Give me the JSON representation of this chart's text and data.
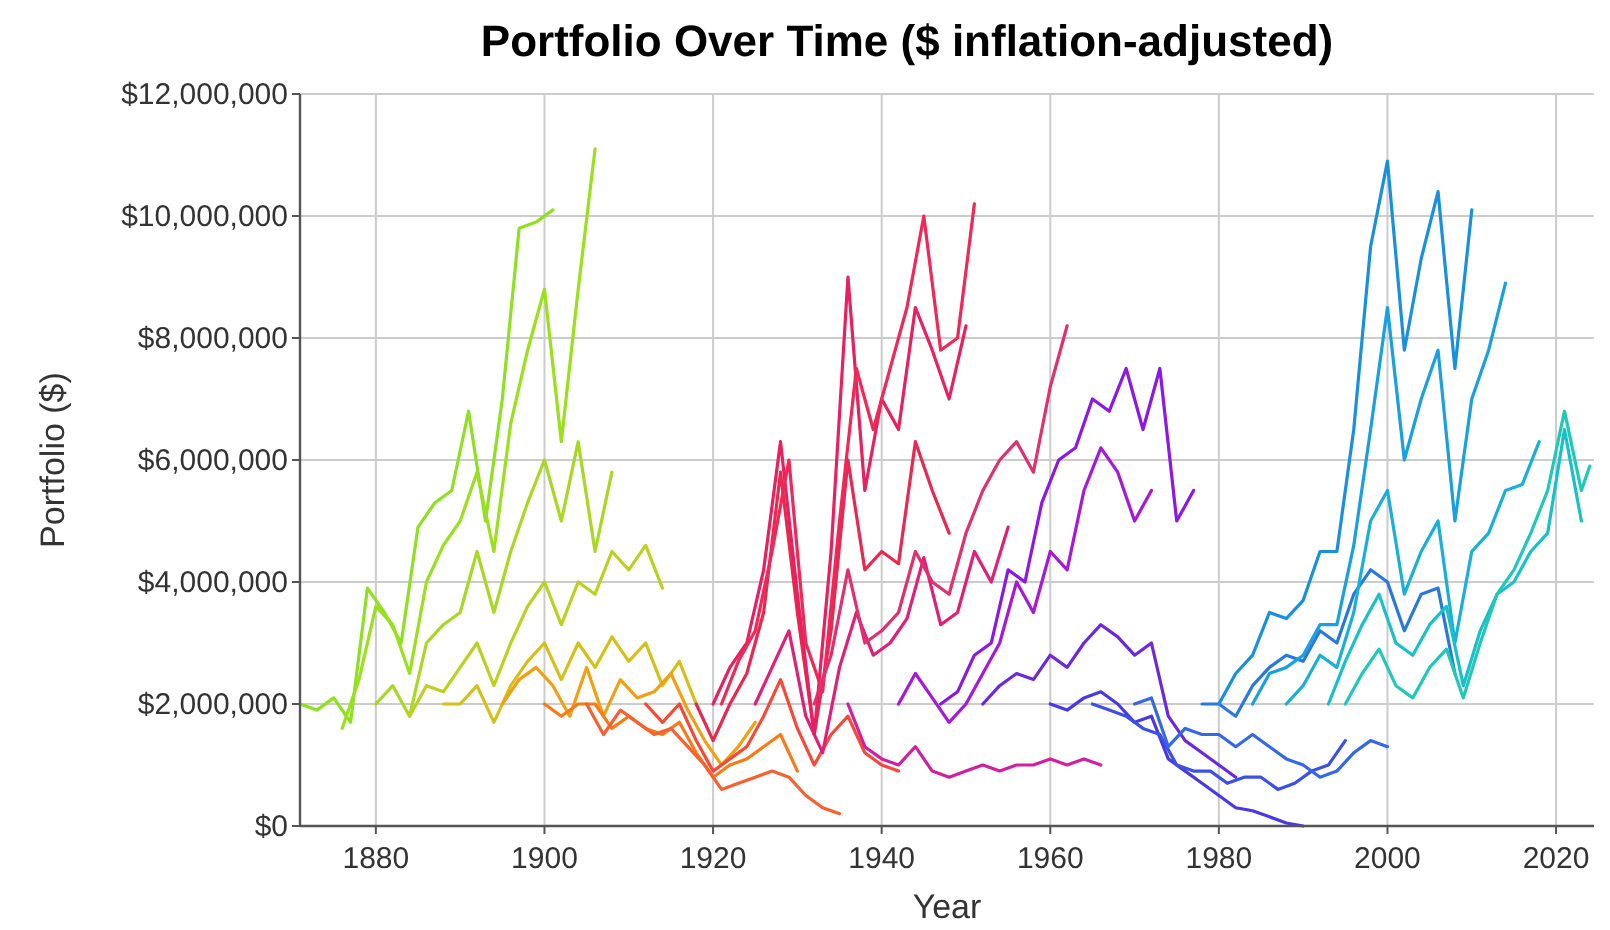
{
  "chart_data": {
    "type": "line",
    "title": "Portfolio Over Time ($ inflation-adjusted)",
    "xlabel": "Year",
    "ylabel": "Portfolio ($)",
    "xlim": [
      1871,
      2024.5
    ],
    "xticks": [
      1880,
      1900,
      1920,
      1940,
      1960,
      1980,
      2000,
      2020
    ],
    "ylim": [
      0,
      12000000
    ],
    "yticks": [
      {
        "value": 0,
        "label": "$0"
      },
      {
        "value": 2000000,
        "label": "$2,000,000"
      },
      {
        "value": 4000000,
        "label": "$4,000,000"
      },
      {
        "value": 6000000,
        "label": "$6,000,000"
      },
      {
        "value": 8000000,
        "label": "$8,000,000"
      },
      {
        "value": 10000000,
        "label": "$10,000,000"
      },
      {
        "value": 12000000,
        "label": "$12,000,000"
      }
    ],
    "grid": true,
    "marker": "none",
    "line_style": "solid",
    "series": [
      {
        "color": "#8ee020",
        "x": [
          1871,
          1873,
          1875,
          1877,
          1879,
          1881,
          1883,
          1885,
          1887,
          1889,
          1891,
          1893,
          1895,
          1897,
          1899,
          1901
        ],
        "values": [
          2000000,
          1900000,
          2100000,
          1700000,
          3900000,
          3500000,
          3000000,
          4900000,
          5300000,
          5500000,
          6800000,
          5000000,
          7000000,
          9800000,
          9900000,
          10100000
        ]
      },
      {
        "color": "#9ae01c",
        "x": [
          1876,
          1878,
          1880,
          1882,
          1884,
          1886,
          1888,
          1890,
          1892,
          1894,
          1896,
          1898,
          1900,
          1902,
          1904,
          1906
        ],
        "values": [
          1600000,
          2400000,
          3600000,
          3300000,
          2500000,
          4000000,
          4600000,
          5000000,
          5800000,
          4500000,
          6600000,
          7800000,
          8800000,
          6300000,
          8800000,
          11100000
        ]
      },
      {
        "color": "#a8d824",
        "x": [
          1880,
          1882,
          1884,
          1886,
          1888,
          1890,
          1892,
          1894,
          1896,
          1898,
          1900,
          1902,
          1904,
          1906,
          1908
        ],
        "values": [
          2000000,
          2300000,
          1800000,
          3000000,
          3300000,
          3500000,
          4500000,
          3500000,
          4500000,
          5300000,
          6000000,
          5000000,
          6300000,
          4500000,
          5800000
        ]
      },
      {
        "color": "#bcd020",
        "x": [
          1884,
          1886,
          1888,
          1890,
          1892,
          1894,
          1896,
          1898,
          1900,
          1902,
          1904,
          1906,
          1908,
          1910,
          1912,
          1914
        ],
        "values": [
          1800000,
          2300000,
          2200000,
          2600000,
          3000000,
          2300000,
          3000000,
          3600000,
          4000000,
          3300000,
          4000000,
          3800000,
          4500000,
          4200000,
          4600000,
          3900000
        ]
      },
      {
        "color": "#d4c018",
        "x": [
          1888,
          1890,
          1892,
          1894,
          1896,
          1898,
          1900,
          1902,
          1904,
          1906,
          1908,
          1910,
          1912,
          1914,
          1916,
          1918
        ],
        "values": [
          2000000,
          2000000,
          2300000,
          1700000,
          2300000,
          2700000,
          3000000,
          2400000,
          3000000,
          2600000,
          3100000,
          2700000,
          3000000,
          2300000,
          2700000,
          2000000
        ]
      },
      {
        "color": "#f0a010",
        "x": [
          1895,
          1897,
          1899,
          1901,
          1903,
          1905,
          1907,
          1909,
          1911,
          1913,
          1915,
          1917,
          1919,
          1921,
          1923,
          1925
        ],
        "values": [
          2000000,
          2400000,
          2600000,
          2300000,
          1800000,
          2600000,
          1800000,
          2400000,
          2100000,
          2200000,
          2500000,
          1900000,
          1400000,
          1000000,
          1300000,
          1700000
        ]
      },
      {
        "color": "#f87a18",
        "x": [
          1900,
          1902,
          1904,
          1906,
          1908,
          1910,
          1912,
          1914,
          1916,
          1918,
          1920,
          1922,
          1924,
          1926,
          1928,
          1930
        ],
        "values": [
          2000000,
          1800000,
          2000000,
          2000000,
          1600000,
          1800000,
          1600000,
          1500000,
          1700000,
          1200000,
          800000,
          1000000,
          1100000,
          1300000,
          1500000,
          900000
        ]
      },
      {
        "color": "#f86030",
        "x": [
          1905,
          1907,
          1909,
          1911,
          1913,
          1915,
          1917,
          1919,
          1921,
          1923,
          1925,
          1927,
          1929,
          1931,
          1933,
          1935
        ],
        "values": [
          2000000,
          1500000,
          1900000,
          1700000,
          1500000,
          1600000,
          1300000,
          1000000,
          600000,
          700000,
          800000,
          900000,
          800000,
          500000,
          300000,
          200000
        ]
      },
      {
        "color": "#f84838",
        "x": [
          1912,
          1914,
          1916,
          1918,
          1920,
          1922,
          1924,
          1926,
          1928,
          1930,
          1932,
          1934,
          1936,
          1938,
          1940,
          1942
        ],
        "values": [
          2000000,
          1700000,
          2000000,
          1400000,
          900000,
          1100000,
          1300000,
          1800000,
          2400000,
          1600000,
          1000000,
          1500000,
          1800000,
          1200000,
          1000000,
          900000
        ]
      },
      {
        "color": "#e82850",
        "x": [
          1918,
          1920,
          1922,
          1924,
          1926,
          1928,
          1930,
          1932,
          1934,
          1936,
          1938,
          1940,
          1942,
          1944,
          1946,
          1948
        ],
        "values": [
          2000000,
          1400000,
          2000000,
          2500000,
          3500000,
          5800000,
          3500000,
          1500000,
          3200000,
          6000000,
          4200000,
          4500000,
          4300000,
          6300000,
          5500000,
          4800000
        ]
      },
      {
        "color": "#e82060",
        "x": [
          1920,
          1922,
          1924,
          1926,
          1928,
          1930,
          1932,
          1934,
          1936,
          1938,
          1940,
          1942,
          1944,
          1946,
          1948,
          1950
        ],
        "values": [
          2000000,
          2600000,
          3000000,
          4200000,
          6300000,
          3800000,
          1500000,
          4500000,
          9000000,
          5500000,
          7000000,
          6500000,
          8500000,
          7800000,
          7000000,
          8200000
        ]
      },
      {
        "color": "#f02858",
        "x": [
          1921,
          1923,
          1925,
          1927,
          1929,
          1931,
          1933,
          1935,
          1937,
          1939,
          1941,
          1943,
          1945,
          1947,
          1949,
          1951
        ],
        "values": [
          2000000,
          2700000,
          3200000,
          4500000,
          6000000,
          3000000,
          2200000,
          5000000,
          7500000,
          6500000,
          7500000,
          8500000,
          10000000,
          7800000,
          8000000,
          10200000
        ]
      },
      {
        "color": "#e02078",
        "x": [
          1925,
          1927,
          1929,
          1931,
          1933,
          1935,
          1937,
          1939,
          1941,
          1943,
          1945,
          1947,
          1949,
          1951,
          1953,
          1955
        ],
        "values": [
          2000000,
          2600000,
          3200000,
          1800000,
          1200000,
          2600000,
          3500000,
          2800000,
          3000000,
          3400000,
          4400000,
          3300000,
          3500000,
          4500000,
          4000000,
          4900000
        ]
      },
      {
        "color": "#e03070",
        "x": [
          1932,
          1934,
          1936,
          1938,
          1940,
          1942,
          1944,
          1946,
          1948,
          1950,
          1952,
          1954,
          1956,
          1958,
          1960,
          1962
        ],
        "values": [
          2000000,
          2800000,
          4200000,
          3000000,
          3200000,
          3500000,
          4500000,
          4000000,
          3800000,
          4800000,
          5500000,
          6000000,
          6300000,
          5800000,
          7200000,
          8200000
        ]
      },
      {
        "color": "#d020a0",
        "x": [
          1936,
          1938,
          1940,
          1942,
          1944,
          1946,
          1948,
          1950,
          1952,
          1954,
          1956,
          1958,
          1960,
          1962,
          1964,
          1966
        ],
        "values": [
          2000000,
          1300000,
          1100000,
          1000000,
          1300000,
          900000,
          800000,
          900000,
          1000000,
          900000,
          1000000,
          1000000,
          1100000,
          1000000,
          1100000,
          1000000
        ]
      },
      {
        "color": "#a818d8",
        "x": [
          1942,
          1944,
          1946,
          1948,
          1950,
          1952,
          1954,
          1956,
          1958,
          1960,
          1962,
          1964,
          1966,
          1968,
          1970,
          1972
        ],
        "values": [
          2000000,
          2500000,
          2100000,
          1700000,
          2000000,
          2500000,
          3000000,
          4000000,
          3500000,
          4500000,
          4200000,
          5500000,
          6200000,
          5800000,
          5000000,
          5500000
        ]
      },
      {
        "color": "#8c18e8",
        "x": [
          1947,
          1949,
          1951,
          1953,
          1955,
          1957,
          1959,
          1961,
          1963,
          1965,
          1967,
          1969,
          1971,
          1973,
          1975,
          1977
        ],
        "values": [
          2000000,
          2200000,
          2800000,
          3000000,
          4200000,
          4000000,
          5300000,
          6000000,
          6200000,
          7000000,
          6800000,
          7500000,
          6500000,
          7500000,
          5000000,
          5500000
        ]
      },
      {
        "color": "#6c28e0",
        "x": [
          1952,
          1954,
          1956,
          1958,
          1960,
          1962,
          1964,
          1966,
          1968,
          1970,
          1972,
          1974,
          1976,
          1978,
          1980,
          1982
        ],
        "values": [
          2000000,
          2300000,
          2500000,
          2400000,
          2800000,
          2600000,
          3000000,
          3300000,
          3100000,
          2800000,
          3000000,
          1800000,
          1400000,
          1200000,
          1000000,
          800000
        ]
      },
      {
        "color": "#4838e8",
        "x": [
          1960,
          1962,
          1964,
          1966,
          1968,
          1970,
          1972,
          1974,
          1976,
          1978,
          1980,
          1982,
          1984,
          1986,
          1988,
          1990
        ],
        "values": [
          2000000,
          1900000,
          2100000,
          2200000,
          2000000,
          1700000,
          1800000,
          1100000,
          900000,
          700000,
          500000,
          300000,
          250000,
          150000,
          50000,
          0
        ]
      },
      {
        "color": "#3c50e8",
        "x": [
          1965,
          1967,
          1969,
          1971,
          1973,
          1975,
          1977,
          1979,
          1981,
          1983,
          1985,
          1987,
          1989,
          1991,
          1993,
          1995
        ],
        "values": [
          2000000,
          1900000,
          1800000,
          1600000,
          1500000,
          1000000,
          900000,
          900000,
          700000,
          800000,
          800000,
          600000,
          700000,
          900000,
          1000000,
          1400000
        ]
      },
      {
        "color": "#3468e8",
        "x": [
          1970,
          1972,
          1974,
          1976,
          1978,
          1980,
          1982,
          1984,
          1986,
          1988,
          1990,
          1992,
          1994,
          1996,
          1998,
          2000
        ],
        "values": [
          2000000,
          2100000,
          1300000,
          1600000,
          1500000,
          1500000,
          1300000,
          1500000,
          1300000,
          1100000,
          1000000,
          800000,
          900000,
          1200000,
          1400000,
          1300000
        ]
      },
      {
        "color": "#2878e0",
        "x": [
          1978,
          1980,
          1982,
          1984,
          1986,
          1988,
          1990,
          1992,
          1994,
          1996,
          1998,
          2000,
          2002,
          2004,
          2006,
          2008
        ],
        "values": [
          2000000,
          2000000,
          1800000,
          2300000,
          2600000,
          2800000,
          2700000,
          3200000,
          3000000,
          3800000,
          4200000,
          4000000,
          3200000,
          3800000,
          3900000,
          2500000
        ]
      },
      {
        "color": "#1890e0",
        "x": [
          1980,
          1982,
          1984,
          1986,
          1988,
          1990,
          1992,
          1994,
          1996,
          1998,
          2000,
          2002,
          2004,
          2006,
          2008,
          2010
        ],
        "values": [
          2000000,
          2500000,
          2800000,
          3500000,
          3400000,
          3700000,
          4500000,
          4500000,
          6500000,
          9500000,
          10900000,
          7800000,
          9300000,
          10400000,
          7500000,
          10100000
        ]
      },
      {
        "color": "#18a0e0",
        "x": [
          1984,
          1986,
          1988,
          1990,
          1992,
          1994,
          1996,
          1998,
          2000,
          2002,
          2004,
          2006,
          2008,
          2010,
          2012,
          2014
        ],
        "values": [
          2000000,
          2500000,
          2600000,
          2800000,
          3300000,
          3300000,
          4600000,
          6500000,
          8500000,
          6000000,
          7000000,
          7800000,
          5000000,
          7000000,
          7800000,
          8900000
        ]
      },
      {
        "color": "#18b0d8",
        "x": [
          1988,
          1990,
          1992,
          1994,
          1996,
          1998,
          2000,
          2002,
          2004,
          2006,
          2008,
          2010,
          2012,
          2014,
          2016,
          2018
        ],
        "values": [
          2000000,
          2300000,
          2800000,
          2600000,
          3500000,
          5000000,
          5500000,
          3800000,
          4500000,
          5000000,
          3000000,
          4500000,
          4800000,
          5500000,
          5600000,
          6300000
        ]
      },
      {
        "color": "#18c0c8",
        "x": [
          1993,
          1995,
          1997,
          1999,
          2001,
          2003,
          2005,
          2007,
          2009,
          2011,
          2013,
          2015,
          2017,
          2019,
          2021,
          2023
        ],
        "values": [
          2000000,
          2700000,
          3300000,
          3800000,
          3000000,
          2800000,
          3300000,
          3600000,
          2300000,
          3200000,
          3800000,
          4000000,
          4500000,
          4800000,
          6500000,
          5000000
        ]
      },
      {
        "color": "#20c8b8",
        "x": [
          1995,
          1997,
          1999,
          2001,
          2003,
          2005,
          2007,
          2009,
          2011,
          2013,
          2015,
          2017,
          2019,
          2021,
          2023,
          2024
        ],
        "values": [
          2000000,
          2500000,
          2900000,
          2300000,
          2100000,
          2600000,
          2900000,
          2100000,
          3000000,
          3800000,
          4200000,
          4800000,
          5500000,
          6800000,
          5500000,
          5900000
        ]
      }
    ]
  }
}
